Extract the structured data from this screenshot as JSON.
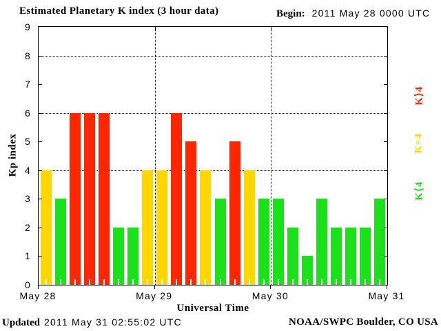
{
  "header": {
    "title": "Estimated Planetary K index (3 hour data)",
    "begin_label": "Begin:",
    "begin_value": "2011 May 28 0000 UTC"
  },
  "footer": {
    "updated_label": "Updated",
    "updated_value": "2011 May 31 02:55:02 UTC",
    "credit": "NOAA/SWPC Boulder, CO USA"
  },
  "colors": {
    "green": "#1be11b",
    "yellow": "#ffd600",
    "red": "#ff2600",
    "axis": "#000000",
    "background": "#ffffff"
  },
  "legend": [
    {
      "label": "K⟩4",
      "meaning": "K greater than 4",
      "color_key": "red"
    },
    {
      "label": "K=4",
      "meaning": "K equal to 4",
      "color_key": "yellow"
    },
    {
      "label": "K⟨4",
      "meaning": "K less than 4",
      "color_key": "green"
    }
  ],
  "chart_data": {
    "type": "bar",
    "title": "Estimated Planetary K index (3 hour data)",
    "xlabel": "Universal Time",
    "ylabel": "Kp index",
    "ylim": [
      0,
      9
    ],
    "y_ticks": [
      0,
      1,
      2,
      3,
      4,
      5,
      6,
      7,
      8,
      9
    ],
    "gridlines_y": [
      4,
      6,
      8
    ],
    "grid": "dotted horizontal at Kp 4,6,8 and dotted vertical at day boundaries",
    "legend_position": "right, rotated 90deg",
    "x_tick_labels": [
      "May 28",
      "May 29",
      "May 30",
      "May 31"
    ],
    "bars_per_day": 8,
    "interval_hours": 3,
    "series": [
      {
        "date": "May 28",
        "values": [
          4,
          3,
          6,
          6,
          6,
          2,
          2,
          4
        ]
      },
      {
        "date": "May 29",
        "values": [
          4,
          6,
          5,
          4,
          3,
          5,
          4,
          3
        ]
      },
      {
        "date": "May 30",
        "values": [
          3,
          2,
          1,
          3,
          2,
          2,
          2,
          3
        ]
      }
    ],
    "color_rule": {
      "below_4": "green",
      "equal_4": "yellow",
      "above_4": "red"
    }
  }
}
